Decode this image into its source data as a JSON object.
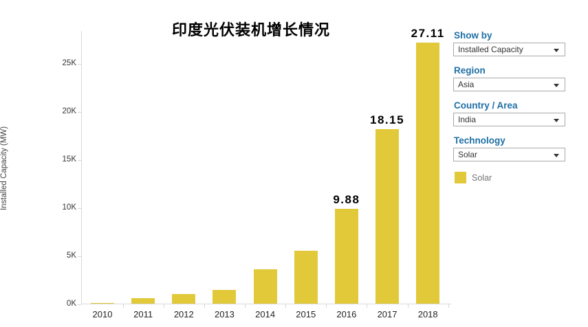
{
  "title": "印度光伏装机增长情况",
  "panel": {
    "filters": [
      {
        "label": "Show by",
        "value": "Installed Capacity"
      },
      {
        "label": "Region",
        "value": "Asia"
      },
      {
        "label": "Country / Area",
        "value": "India"
      },
      {
        "label": "Technology",
        "value": "Solar"
      }
    ],
    "legend": {
      "label": "Solar",
      "swatch_color": "#e2c93a"
    }
  },
  "chart_data": {
    "type": "bar",
    "title": "印度光伏装机增长情况",
    "categories": [
      "2010",
      "2011",
      "2012",
      "2013",
      "2014",
      "2015",
      "2016",
      "2017",
      "2018"
    ],
    "values_thousand_mw": [
      0.07,
      0.57,
      1.0,
      1.4,
      3.6,
      5.5,
      9.88,
      18.15,
      27.11
    ],
    "point_labels": [
      "",
      "",
      "",
      "",
      "",
      "",
      "9.88",
      "18.15",
      "27.11"
    ],
    "xlabel": "",
    "ylabel": "Installed Capacity (MW)",
    "y_ticks": [
      "0K",
      "5K",
      "10K",
      "15K",
      "20K",
      "25K"
    ],
    "y_tick_interval_thousand_mw": 5,
    "ylim_thousand_mw": [
      0,
      28.4
    ],
    "grid": false,
    "legend_position": "right",
    "bar_color": "#e2c93a",
    "series_name": "Solar"
  },
  "colors": {
    "bar_yellow": "#e2c93a",
    "filter_label_blue": "#1e6fa5",
    "axis_line_gray": "#d7d7d7",
    "tick_text": "#333333",
    "legend_text": "#757575"
  }
}
